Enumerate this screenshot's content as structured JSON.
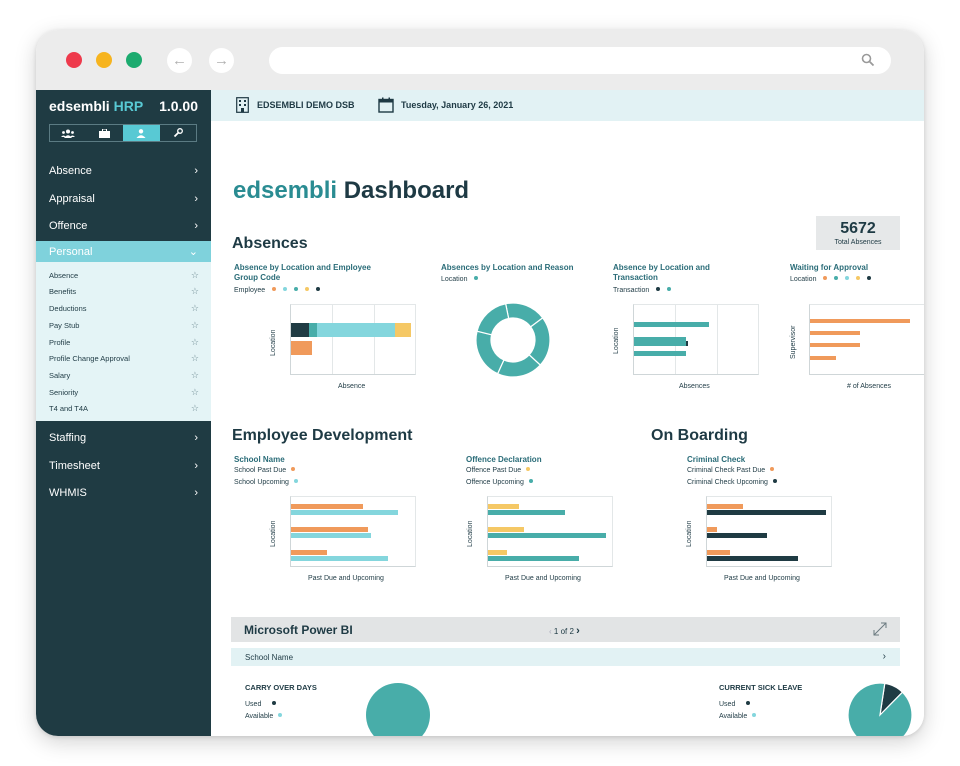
{
  "sidebar": {
    "brand_main": "edsembli",
    "brand_accent": "HRP",
    "version": "1.0.00",
    "modes": [
      "people-icon",
      "briefcase-icon",
      "person-icon",
      "wrench-icon"
    ],
    "items_top": [
      {
        "label": "Absence",
        "chevron": "›"
      },
      {
        "label": "Appraisal",
        "chevron": "›"
      },
      {
        "label": "Offence",
        "chevron": "›"
      },
      {
        "label": "Personal",
        "chevron": "⌄"
      }
    ],
    "sub_items": [
      "Absence",
      "Benefits",
      "Deductions",
      "Pay Stub",
      "Profile",
      "Profile Change Approval",
      "Salary",
      "Seniority",
      "T4 and T4A"
    ],
    "items_bottom": [
      {
        "label": "Staffing",
        "chevron": "›"
      },
      {
        "label": "Timesheet",
        "chevron": "›"
      },
      {
        "label": "WHMIS",
        "chevron": "›"
      }
    ]
  },
  "topbar": {
    "org": "EDSEMBLI DEMO DSB",
    "date": "Tuesday, January 26, 2021"
  },
  "page": {
    "title_brand": "edsembli",
    "title_rest": "Dashboard",
    "kpi_value": "5672",
    "kpi_label": "Total Absences"
  },
  "sections": {
    "absences": "Absences",
    "employee_development": "Employee Development",
    "on_boarding": "On Boarding"
  },
  "colors": {
    "teal": "#48ada9",
    "light_teal": "#84d6dd",
    "dark": "#1f3b43",
    "orange": "#f09a5b",
    "yellow": "#f5c865"
  },
  "charts": {
    "abs_loc_group": {
      "title_line1": "Absence by Location and Employee",
      "title_line2": "Group Code",
      "legend": "Employee",
      "ylabel": "Location",
      "xlabel": "Absence"
    },
    "abs_loc_reason": {
      "title": "Absences by Location and Reason",
      "legend": "Location"
    },
    "abs_loc_trans": {
      "title_line1": "Absence by Location and",
      "title_line2": "Transaction",
      "legend": "Transaction",
      "ylabel": "Location",
      "xlabel": "Absences"
    },
    "waiting": {
      "title": "Waiting for Approval",
      "legend": "Location",
      "ylabel": "Supervisor",
      "xlabel": "# of Absences"
    },
    "school_name": {
      "title": "School Name",
      "legend1": "School Past Due",
      "legend2": "School Upcoming",
      "ylabel": "Location",
      "xlabel": "Past Due and Upcoming"
    },
    "offence_decl": {
      "title": "Offence Declaration",
      "legend1": "Offence Past Due",
      "legend2": "Offence Upcoming",
      "ylabel": "Location",
      "xlabel": "Past Due and Upcoming"
    },
    "criminal_check": {
      "title": "Criminal Check",
      "legend1": "Criminal Check Past Due",
      "legend2": "Criminal Check Upcoming",
      "ylabel": "Location",
      "xlabel": "Past Due and Upcoming"
    }
  },
  "powerbi": {
    "title": "Microsoft Power BI",
    "pager": "1 of 2",
    "filter_label": "School Name",
    "carry_title": "CARRY OVER DAYS",
    "sick_title": "CURRENT SICK LEAVE",
    "used": "Used",
    "available": "Available"
  },
  "chart_data": [
    {
      "type": "bar",
      "id": "abs_loc_group",
      "orientation": "horizontal",
      "stacked": true,
      "categories": [
        "row1",
        "row2"
      ],
      "series": [
        {
          "color": "#1f3b43",
          "values": [
            2.2,
            0
          ]
        },
        {
          "color": "#48ada9",
          "values": [
            1,
            0
          ]
        },
        {
          "color": "#84d6dd",
          "values": [
            9.4,
            0
          ]
        },
        {
          "color": "#f5c865",
          "values": [
            1.9,
            0
          ]
        },
        {
          "color": "#f09a5b",
          "values": [
            0,
            2.5
          ]
        }
      ],
      "xlim": [
        0,
        15
      ]
    },
    {
      "type": "pie",
      "id": "abs_loc_reason",
      "donut": true,
      "slices": [
        {
          "color": "#48ada9",
          "value": 18
        },
        {
          "color": "#48ada9",
          "value": 22
        },
        {
          "color": "#48ada9",
          "value": 20
        },
        {
          "color": "#48ada9",
          "value": 22
        },
        {
          "color": "#48ada9",
          "value": 18
        }
      ]
    },
    {
      "type": "bar",
      "id": "abs_loc_trans",
      "orientation": "horizontal",
      "stacked": true,
      "categories": [
        "row1",
        "row2",
        "row3",
        "row4"
      ],
      "series": [
        {
          "color": "#48ada9",
          "values": [
            11.5,
            8,
            8,
            8
          ]
        },
        {
          "color": "#1f3b43",
          "values": [
            0,
            0,
            0.3,
            0
          ]
        }
      ],
      "xlim": [
        0,
        19
      ]
    },
    {
      "type": "bar",
      "id": "waiting",
      "orientation": "horizontal",
      "categories": [
        "row1",
        "row2",
        "row3",
        "row4"
      ],
      "values": [
        13.5,
        6.7,
        6.7,
        3.5
      ],
      "color": "#f09a5b",
      "xlim": [
        0,
        17
      ]
    },
    {
      "type": "bar",
      "id": "school_name",
      "orientation": "horizontal",
      "categories": [
        "row1",
        "row2",
        "row3"
      ],
      "series": [
        {
          "name": "School Past Due",
          "color": "#f09a5b",
          "values": [
            8.7,
            9.3,
            4.3
          ]
        },
        {
          "name": "School Upcoming",
          "color": "#84d6dd",
          "values": [
            13,
            9.7,
            11.7
          ]
        }
      ],
      "xlim": [
        0,
        15
      ]
    },
    {
      "type": "bar",
      "id": "offence_decl",
      "orientation": "horizontal",
      "categories": [
        "row1",
        "row2",
        "row3"
      ],
      "series": [
        {
          "name": "Offence Past Due",
          "color": "#f5c865",
          "values": [
            3.7,
            4.3,
            2.3
          ]
        },
        {
          "name": "Offence Upcoming",
          "color": "#48ada9",
          "values": [
            9.3,
            14.3,
            11
          ]
        }
      ],
      "xlim": [
        0,
        15
      ]
    },
    {
      "type": "bar",
      "id": "criminal_check",
      "orientation": "horizontal",
      "categories": [
        "row1",
        "row2",
        "row3"
      ],
      "series": [
        {
          "name": "Criminal Check Past Due",
          "color": "#f09a5b",
          "values": [
            4.7,
            1.3,
            3
          ]
        },
        {
          "name": "Criminal Check Upcoming",
          "color": "#1f3b43",
          "values": [
            15.3,
            7.7,
            11.7
          ]
        }
      ],
      "xlim": [
        0,
        16
      ]
    },
    {
      "type": "pie",
      "id": "carry_over_days",
      "slices": [
        {
          "name": "Available",
          "color": "#48ada9",
          "value": 100
        }
      ]
    },
    {
      "type": "pie",
      "id": "current_sick_leave",
      "slices": [
        {
          "name": "Used",
          "color": "#1f3b43",
          "value": 10
        },
        {
          "name": "Available",
          "color": "#48ada9",
          "value": 90
        }
      ]
    }
  ]
}
